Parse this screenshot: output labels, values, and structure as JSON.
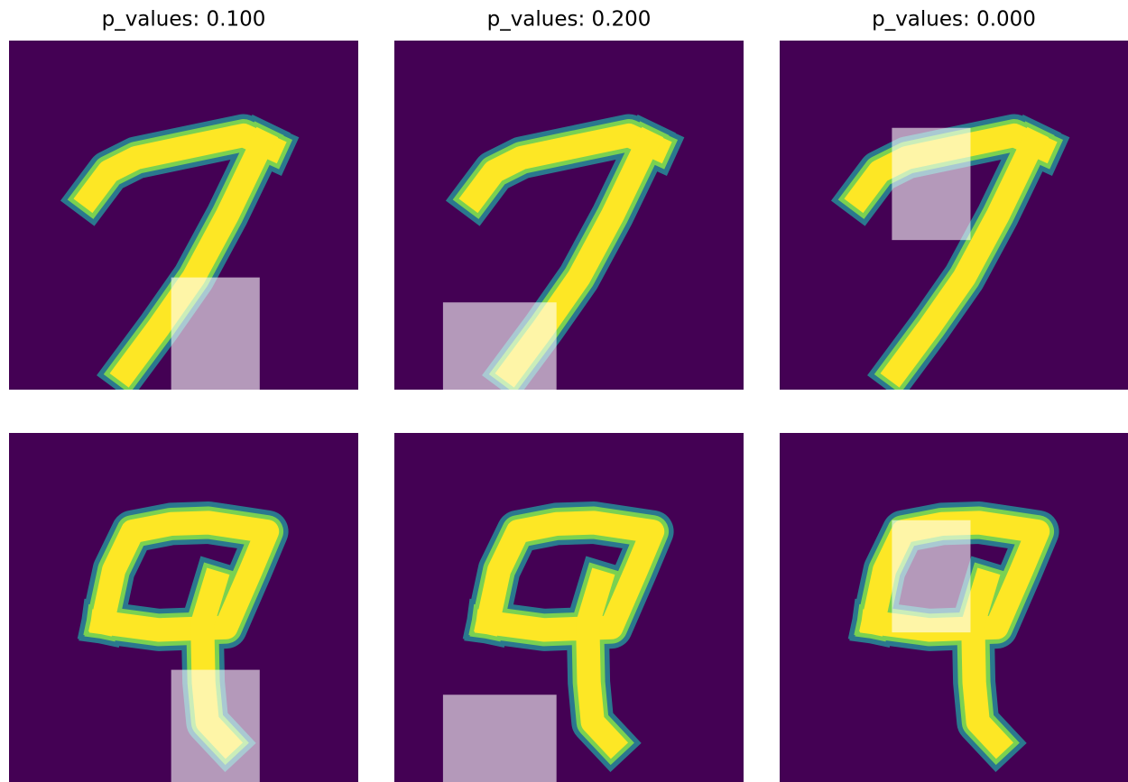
{
  "titles": [
    "p_values: 0.100",
    "p_values: 0.200",
    "p_values: 0.000"
  ]
}
